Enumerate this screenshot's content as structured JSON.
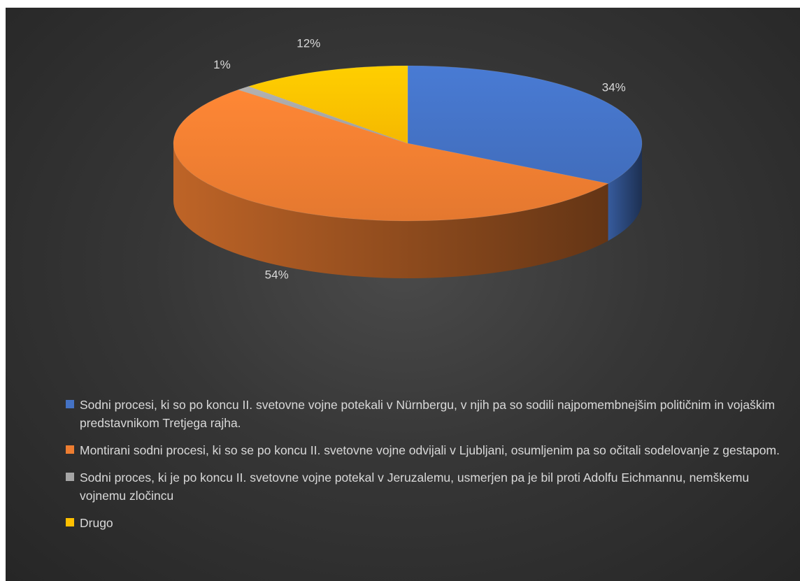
{
  "chart_data": {
    "type": "pie",
    "style": "3d",
    "categories": [
      "Sodni procesi, ki so po koncu II. svetovne vojne potekali v Nürnbergu, v njih pa so sodili najpomembnejšim političnim in vojaškim predstavnikom Tretjega rajha.",
      "Montirani sodni procesi, ki so se po koncu II. svetovne vojne odvijali v Ljubljani, osumljenim pa so očitali sodelovanje z gestapom.",
      "Sodni proces, ki je po koncu II. svetovne vojne potekal v Jeruzalemu, usmerjen pa je bil proti Adolfu Eichmannu, nemškemu vojnemu zločincu",
      "Drugo"
    ],
    "values": [
      34,
      54,
      1,
      12
    ],
    "labels": [
      "34%",
      "54%",
      "1%",
      "12%"
    ],
    "colors": [
      "#4472c4",
      "#ed7d31",
      "#a5a5a5",
      "#ffc000"
    ],
    "legend_position": "bottom"
  }
}
